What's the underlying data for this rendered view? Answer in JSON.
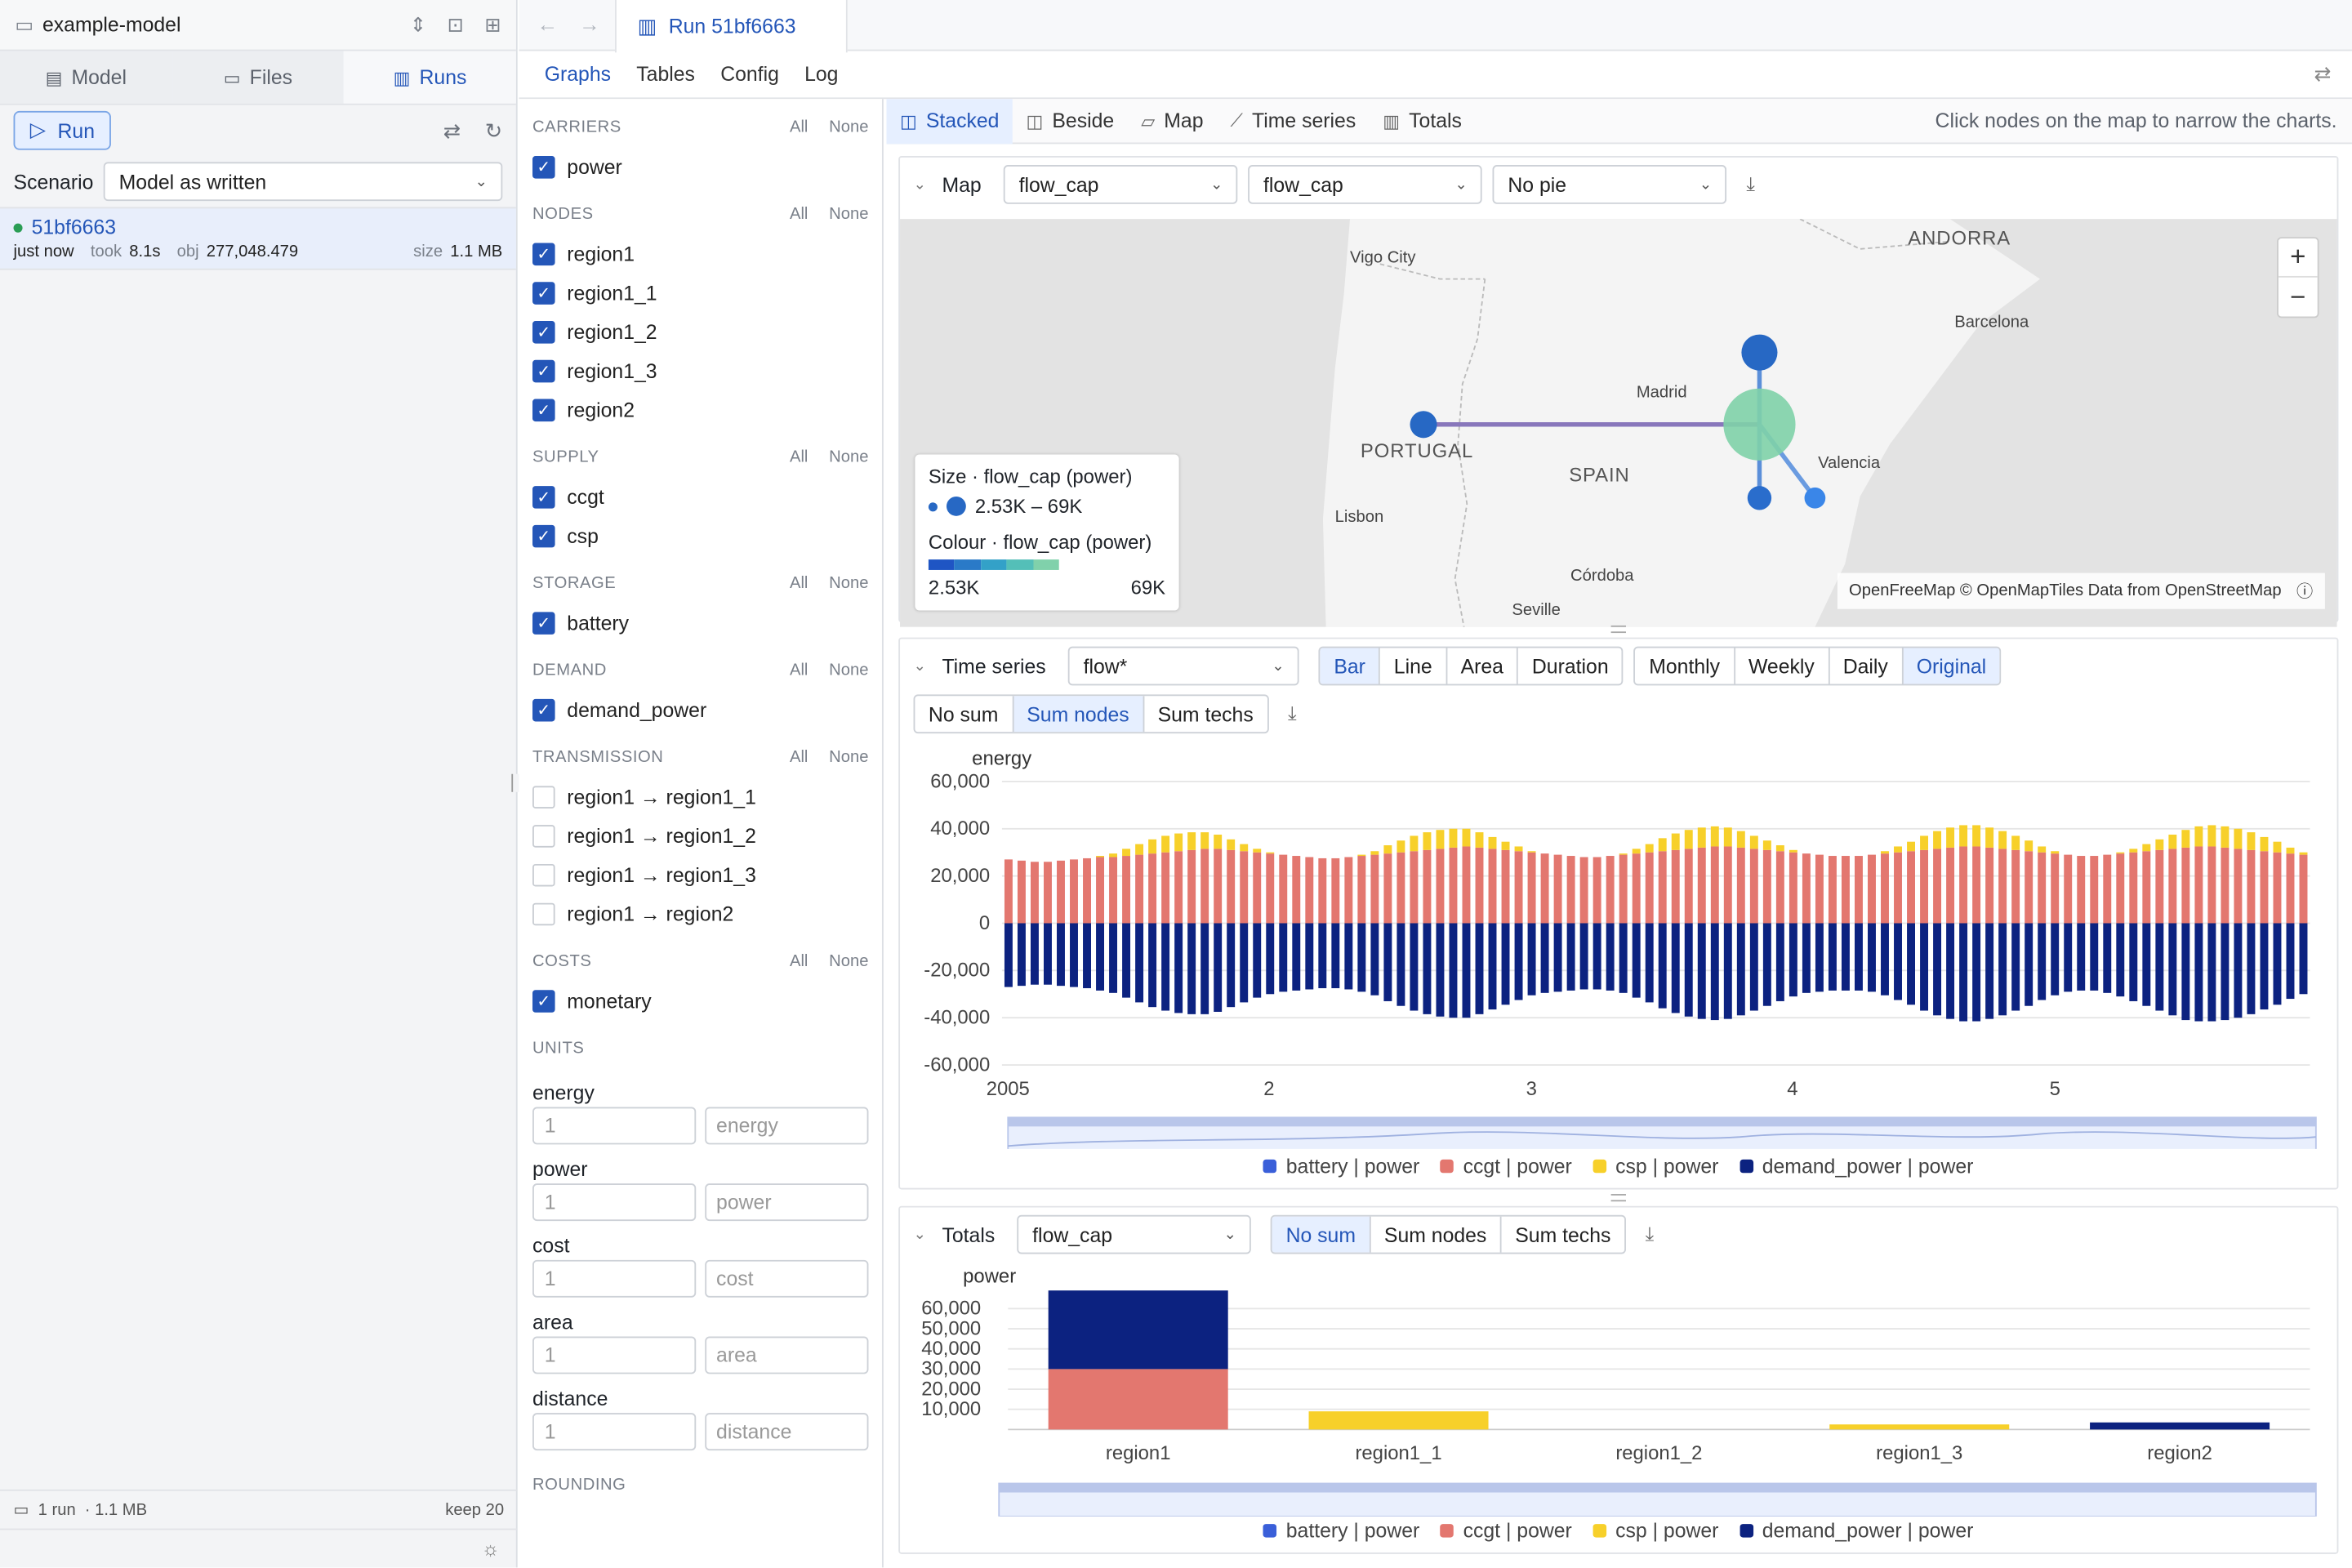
{
  "project": {
    "name": "example-model"
  },
  "left_tabs": [
    {
      "label": "Model"
    },
    {
      "label": "Files"
    },
    {
      "label": "Runs"
    }
  ],
  "runbar": {
    "run_label": "Run"
  },
  "scenario": {
    "label": "Scenario",
    "value": "Model as written"
  },
  "run": {
    "id": "51bf6663",
    "when": "just now",
    "took_label": "took",
    "took": "8.1s",
    "obj_label": "obj",
    "obj": "277,048.479",
    "size_label": "size",
    "size": "1.1 MB"
  },
  "left_footer": {
    "runs": "1 run",
    "size": "· 1.1 MB",
    "keep": "keep 20"
  },
  "top": {
    "run_tab": "Run 51bf6663"
  },
  "subtabs": [
    "Graphs",
    "Tables",
    "Config",
    "Log"
  ],
  "filters": {
    "all": "All",
    "none": "None",
    "sections": [
      {
        "title": "CARRIERS",
        "items": [
          {
            "label": "power",
            "checked": true
          }
        ]
      },
      {
        "title": "NODES",
        "items": [
          {
            "label": "region1",
            "checked": true
          },
          {
            "label": "region1_1",
            "checked": true
          },
          {
            "label": "region1_2",
            "checked": true
          },
          {
            "label": "region1_3",
            "checked": true
          },
          {
            "label": "region2",
            "checked": true
          }
        ]
      },
      {
        "title": "SUPPLY",
        "items": [
          {
            "label": "ccgt",
            "checked": true
          },
          {
            "label": "csp",
            "checked": true
          }
        ]
      },
      {
        "title": "STORAGE",
        "items": [
          {
            "label": "battery",
            "checked": true
          }
        ]
      },
      {
        "title": "DEMAND",
        "items": [
          {
            "label": "demand_power",
            "checked": true
          }
        ]
      },
      {
        "title": "TRANSMISSION",
        "items": [
          {
            "label": "region1 → region1_1",
            "checked": false
          },
          {
            "label": "region1 → region1_2",
            "checked": false
          },
          {
            "label": "region1 → region1_3",
            "checked": false
          },
          {
            "label": "region1 → region2",
            "checked": false
          }
        ]
      },
      {
        "title": "COSTS",
        "items": [
          {
            "label": "monetary",
            "checked": true
          }
        ]
      }
    ],
    "units_title": "UNITS",
    "units": [
      {
        "name": "energy",
        "value": "1",
        "unit": "energy"
      },
      {
        "name": "power",
        "value": "1",
        "unit": "power"
      },
      {
        "name": "cost",
        "value": "1",
        "unit": "cost"
      },
      {
        "name": "area",
        "value": "1",
        "unit": "area"
      },
      {
        "name": "distance",
        "value": "1",
        "unit": "distance"
      }
    ],
    "rounding_title": "ROUNDING"
  },
  "views": [
    "Stacked",
    "Beside",
    "Map",
    "Time series",
    "Totals"
  ],
  "view_hint": "Click nodes on the map to narrow the charts.",
  "map": {
    "title": "Map",
    "size_var": "flow_cap",
    "colour_var": "flow_cap",
    "pie": "No pie",
    "places": [
      "ANDORRA",
      "Vigo City",
      "Barcelona",
      "Madrid",
      "PORTUGAL",
      "SPAIN",
      "Valencia",
      "Lisbon",
      "Córdoba",
      "Seville"
    ],
    "legend": {
      "size_title": "Size · flow_cap (power)",
      "size_range": "2.53K – 69K",
      "colour_title": "Colour · flow_cap (power)",
      "min": "2.53K",
      "max": "69K"
    },
    "attribution": "OpenFreeMap © OpenMapTiles Data from OpenStreetMap"
  },
  "timeseries": {
    "title": "Time series",
    "variable": "flow*",
    "chart_types": [
      "Bar",
      "Line",
      "Area",
      "Duration"
    ],
    "resample": [
      "Monthly",
      "Weekly",
      "Daily",
      "Original"
    ],
    "sum_modes": [
      "No sum",
      "Sum nodes",
      "Sum techs"
    ]
  },
  "totals": {
    "title": "Totals",
    "variable": "flow_cap",
    "sum_modes": [
      "No sum",
      "Sum nodes",
      "Sum techs"
    ]
  },
  "colors": {
    "battery": "#3a5fd9",
    "ccgt": "#e3776f",
    "csp": "#f7d02a",
    "demand_power": "#0c2280",
    "accent": "#2456b8"
  },
  "chart_data": [
    {
      "type": "bar",
      "stacked": true,
      "ylabel": "energy",
      "ylim": [
        -60000,
        60000
      ],
      "yticks": [
        "60,000",
        "40,000",
        "20,000",
        "0",
        "-20,000",
        "-40,000",
        "-60,000"
      ],
      "xticks": [
        "2005",
        "2",
        "3",
        "4",
        "5"
      ],
      "series": [
        {
          "name": "battery | power"
        },
        {
          "name": "ccgt | power",
          "values": [
            27000,
            26500,
            26000,
            26000,
            26500,
            27000,
            27500,
            28000,
            28000,
            28500,
            29000,
            29500,
            30000,
            30500,
            31000,
            31500,
            31500,
            31000,
            30500,
            30000,
            29500,
            29000,
            28500,
            28000,
            27500,
            27500,
            28000,
            28500,
            29000,
            29500,
            30000,
            30500,
            31000,
            31500,
            32000,
            32500,
            32000,
            31500,
            31000,
            30500,
            30000,
            29500,
            29000,
            28500,
            28000,
            28000,
            28500,
            29000,
            29500,
            30000,
            30500,
            31000,
            31500,
            32000,
            32500,
            32500,
            32000,
            31500,
            31000,
            30500,
            30000,
            29500,
            29000,
            28500,
            28500,
            28500,
            29000,
            29500,
            30000,
            30500,
            31000,
            31500,
            32000,
            32500,
            32500,
            32000,
            31500,
            31000,
            30500,
            30000,
            29500,
            29000,
            28500,
            28500,
            29000,
            29500,
            30000,
            30500,
            31000,
            31500,
            32000,
            32500,
            32500,
            32000,
            31500,
            31000,
            30500,
            30000,
            29500,
            29000
          ]
        },
        {
          "name": "csp | power",
          "values": [
            0,
            0,
            0,
            0,
            0,
            0,
            0,
            500,
            1500,
            3000,
            4500,
            6000,
            7000,
            7500,
            7500,
            7000,
            6000,
            4500,
            3000,
            1500,
            500,
            0,
            0,
            0,
            0,
            0,
            0,
            500,
            1500,
            3500,
            5000,
            6500,
            7500,
            8000,
            8000,
            7500,
            6500,
            5000,
            3500,
            2000,
            500,
            0,
            0,
            0,
            0,
            0,
            0,
            500,
            2000,
            3500,
            5500,
            7000,
            8000,
            8500,
            8500,
            8000,
            7000,
            5500,
            4000,
            2500,
            1000,
            0,
            0,
            0,
            0,
            0,
            0,
            1000,
            2500,
            4000,
            6000,
            7500,
            8500,
            9000,
            9000,
            8500,
            7500,
            6000,
            4500,
            2500,
            1000,
            0,
            0,
            0,
            0,
            500,
            1500,
            3000,
            4500,
            6000,
            7500,
            8500,
            9000,
            9000,
            8500,
            7500,
            6000,
            4500,
            2500,
            1000
          ]
        },
        {
          "name": "demand_power | power",
          "values": [
            -27000,
            -26500,
            -26000,
            -26000,
            -26500,
            -27000,
            -27500,
            -28500,
            -29500,
            -31500,
            -33500,
            -35500,
            -37000,
            -38000,
            -38500,
            -38500,
            -37500,
            -35500,
            -33500,
            -31500,
            -30000,
            -29000,
            -28500,
            -28000,
            -27500,
            -27500,
            -28000,
            -29000,
            -30500,
            -33000,
            -35000,
            -37000,
            -38500,
            -39500,
            -40000,
            -40000,
            -38500,
            -36500,
            -34500,
            -32500,
            -30500,
            -29500,
            -29000,
            -28500,
            -28000,
            -28000,
            -28500,
            -29500,
            -31500,
            -33500,
            -36000,
            -38000,
            -39500,
            -40500,
            -41000,
            -40500,
            -39000,
            -37000,
            -35000,
            -33000,
            -31000,
            -29500,
            -29000,
            -28500,
            -28500,
            -28500,
            -29000,
            -30500,
            -32500,
            -34500,
            -37000,
            -39000,
            -40500,
            -41500,
            -41500,
            -40500,
            -39000,
            -37000,
            -35000,
            -32500,
            -30500,
            -29000,
            -28500,
            -28500,
            -29500,
            -31000,
            -33000,
            -35000,
            -37000,
            -39000,
            -41000,
            -41500,
            -41500,
            -41000,
            -40000,
            -38500,
            -36500,
            -34500,
            -32000,
            -30000
          ]
        }
      ],
      "legend": [
        "battery | power",
        "ccgt | power",
        "csp | power",
        "demand_power | power"
      ]
    },
    {
      "type": "bar",
      "stacked": true,
      "ylabel": "power",
      "ylim": [
        0,
        70000
      ],
      "yticks": [
        "60,000",
        "50,000",
        "40,000",
        "30,000",
        "20,000",
        "10,000"
      ],
      "categories": [
        "region1",
        "region1_1",
        "region1_2",
        "region1_3",
        "region2"
      ],
      "series": [
        {
          "name": "battery | power",
          "values": [
            0,
            0,
            0,
            0,
            0
          ]
        },
        {
          "name": "ccgt | power",
          "values": [
            30000,
            0,
            0,
            0,
            0
          ]
        },
        {
          "name": "csp | power",
          "values": [
            0,
            9000,
            0,
            2500,
            0
          ]
        },
        {
          "name": "demand_power | power",
          "values": [
            39000,
            0,
            0,
            0,
            3500
          ]
        }
      ],
      "legend": [
        "battery | power",
        "ccgt | power",
        "csp | power",
        "demand_power | power"
      ]
    }
  ]
}
